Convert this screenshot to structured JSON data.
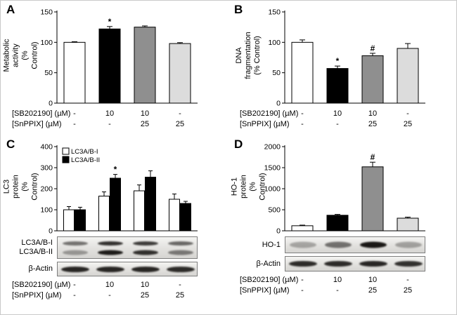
{
  "figure_title": "",
  "chart_data": [
    {
      "panel": "A",
      "type": "bar",
      "title": "",
      "ylabel": "Metabolic activity\n(% Control)",
      "xlabel": "",
      "ylim": [
        0,
        150
      ],
      "yticks": [
        0,
        50,
        100,
        150
      ],
      "grid": false,
      "categories": [
        "-/-",
        "10/-",
        "10/25",
        "-/25"
      ],
      "values": [
        100,
        122,
        125,
        98
      ],
      "errors": [
        1,
        4,
        2,
        1.5
      ],
      "bar_colors": [
        "#ffffff",
        "#000000",
        "#8f8f8f",
        "#dcdcdc"
      ],
      "annotations": [
        {
          "index": 1,
          "text": "*"
        }
      ],
      "xaxis_rows": [
        {
          "label": "[SB202190] (µM)",
          "values": [
            "-",
            "10",
            "10",
            "-"
          ]
        },
        {
          "label": "[SnPPIX] (µM)",
          "values": [
            "-",
            "-",
            "25",
            "25"
          ]
        }
      ]
    },
    {
      "panel": "B",
      "type": "bar",
      "title": "",
      "ylabel": "DNA fragmentation\n(% Control)",
      "xlabel": "",
      "ylim": [
        0,
        150
      ],
      "yticks": [
        0,
        50,
        100,
        150
      ],
      "grid": false,
      "categories": [
        "-/-",
        "10/-",
        "10/25",
        "-/25"
      ],
      "values": [
        100,
        57,
        78,
        90
      ],
      "errors": [
        4,
        4,
        4,
        8
      ],
      "bar_colors": [
        "#ffffff",
        "#000000",
        "#8f8f8f",
        "#dcdcdc"
      ],
      "annotations": [
        {
          "index": 1,
          "text": "*"
        },
        {
          "index": 2,
          "text": "#"
        }
      ],
      "xaxis_rows": [
        {
          "label": "[SB202190] (µM)",
          "values": [
            "-",
            "10",
            "10",
            "-"
          ]
        },
        {
          "label": "[SnPPIX] (µM)",
          "values": [
            "-",
            "-",
            "25",
            "25"
          ]
        }
      ]
    },
    {
      "panel": "C",
      "type": "grouped-bar",
      "title": "",
      "ylabel": "LC3 protein\n(% Control)",
      "xlabel": "",
      "ylim": [
        0,
        400
      ],
      "yticks": [
        0,
        100,
        200,
        300,
        400
      ],
      "grid": false,
      "categories": [
        "-/-",
        "10/-",
        "10/25",
        "-/25"
      ],
      "legend": [
        {
          "label": "LC3A/B-I",
          "fill": "#ffffff"
        },
        {
          "label": "LC3A/B-II",
          "fill": "#000000"
        }
      ],
      "series": [
        {
          "name": "LC3A/B-I",
          "fill": "#ffffff",
          "values": [
            100,
            165,
            190,
            150
          ],
          "errors": [
            15,
            20,
            28,
            25
          ]
        },
        {
          "name": "LC3A/B-II",
          "fill": "#000000",
          "values": [
            100,
            250,
            255,
            130
          ],
          "errors": [
            12,
            18,
            30,
            10
          ]
        }
      ],
      "annotations": [
        {
          "series": 1,
          "index": 1,
          "text": "*"
        }
      ],
      "xaxis_rows": [
        {
          "label": "[SB202190] (µM)",
          "values": [
            "-",
            "10",
            "10",
            "-"
          ]
        },
        {
          "label": "[SnPPIX] (µM)",
          "values": [
            "-",
            "-",
            "25",
            "25"
          ]
        }
      ],
      "blot": {
        "groups": [
          {
            "rows": [
              {
                "label": "LC3A/B-I",
                "intensities": [
                  0.55,
                  0.85,
                  0.8,
                  0.6
                ],
                "band_w": 36,
                "band_h": 6
              },
              {
                "label": "LC3A/B-II",
                "intensities": [
                  0.35,
                  0.95,
                  0.85,
                  0.5
                ],
                "band_w": 36,
                "band_h": 7
              }
            ]
          },
          {
            "rows": [
              {
                "label": "β-Actin",
                "intensities": [
                  0.9,
                  0.9,
                  0.9,
                  0.88
                ],
                "band_w": 40,
                "band_h": 8
              }
            ]
          }
        ]
      }
    },
    {
      "panel": "D",
      "type": "bar",
      "title": "",
      "ylabel": "HO-1 protein\n(% Control)",
      "xlabel": "",
      "ylim": [
        0,
        2000
      ],
      "yticks": [
        0,
        500,
        1000,
        1500,
        2000
      ],
      "grid": false,
      "categories": [
        "-/-",
        "10/-",
        "10/25",
        "-/25"
      ],
      "values": [
        120,
        370,
        1520,
        300
      ],
      "errors": [
        15,
        20,
        110,
        25
      ],
      "bar_colors": [
        "#ffffff",
        "#000000",
        "#8f8f8f",
        "#dcdcdc"
      ],
      "annotations": [
        {
          "index": 2,
          "text": "#"
        }
      ],
      "xaxis_rows": [
        {
          "label": "[SB202190] (µM)",
          "values": [
            "-",
            "10",
            "10",
            "-"
          ]
        },
        {
          "label": "[SnPPIX] (µM)",
          "values": [
            "-",
            "-",
            "25",
            "25"
          ]
        }
      ],
      "blot": {
        "groups": [
          {
            "rows": [
              {
                "label": "HO-1",
                "intensities": [
                  0.3,
                  0.55,
                  0.97,
                  0.32
                ],
                "band_w": 38,
                "band_h": 9
              }
            ]
          },
          {
            "rows": [
              {
                "label": "β-Actin",
                "intensities": [
                  0.88,
                  0.88,
                  0.9,
                  0.85
                ],
                "band_w": 40,
                "band_h": 8
              }
            ]
          }
        ]
      }
    }
  ]
}
